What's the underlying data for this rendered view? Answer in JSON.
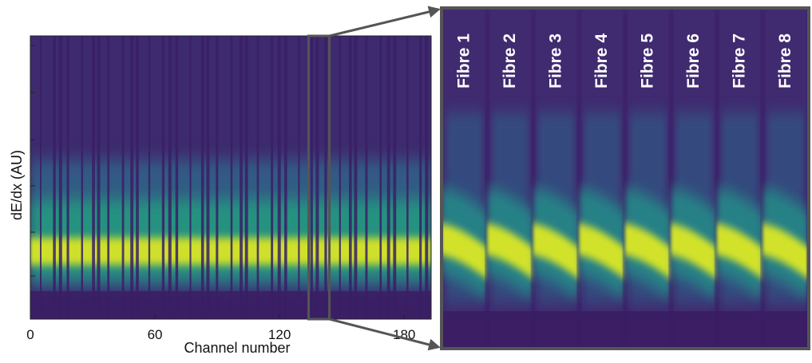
{
  "chart_data": {
    "type": "heatmap",
    "xlabel": "Channel number",
    "ylabel": "dE/dx (AU)",
    "xlim": [
      0,
      193
    ],
    "xticks": [
      0,
      60,
      120,
      180
    ],
    "zoom": {
      "xlim": [
        134,
        144
      ],
      "labels": [
        "Fibre 1",
        "Fibre 2",
        "Fibre 3",
        "Fibre 4",
        "Fibre 5",
        "Fibre 6",
        "Fibre 7",
        "Fibre 8"
      ]
    }
  }
}
